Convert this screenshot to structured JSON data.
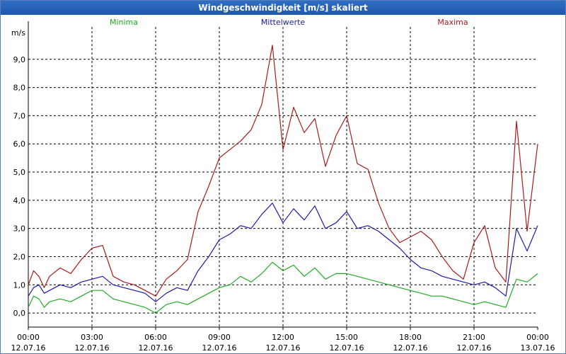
{
  "title": "Windgeschwindigkeit [m/s] skaliert",
  "chart_data": {
    "type": "line",
    "title": "Windgeschwindigkeit [m/s] skaliert",
    "ylabel": "m/s",
    "xlabel": "",
    "ylim": [
      -0.5,
      10.0
    ],
    "xlim": [
      0,
      24
    ],
    "grid": true,
    "legend_position": "top",
    "y_ticks": [
      {
        "value": 0,
        "label": "0,0"
      },
      {
        "value": 1,
        "label": "1,0"
      },
      {
        "value": 2,
        "label": "2,0"
      },
      {
        "value": 3,
        "label": "3,0"
      },
      {
        "value": 4,
        "label": "4,0"
      },
      {
        "value": 5,
        "label": "5,0"
      },
      {
        "value": 6,
        "label": "6,0"
      },
      {
        "value": 7,
        "label": "7,0"
      },
      {
        "value": 8,
        "label": "8,0"
      },
      {
        "value": 9,
        "label": "9,0"
      }
    ],
    "x_ticks": [
      {
        "value": 0,
        "time": "00:00",
        "date": "12.07.16"
      },
      {
        "value": 3,
        "time": "03:00",
        "date": "12.07.16"
      },
      {
        "value": 6,
        "time": "06:00",
        "date": "12.07.16"
      },
      {
        "value": 9,
        "time": "09:00",
        "date": "12.07.16"
      },
      {
        "value": 12,
        "time": "12:00",
        "date": "12.07.16"
      },
      {
        "value": 15,
        "time": "15:00",
        "date": "12.07.16"
      },
      {
        "value": 18,
        "time": "18:00",
        "date": "12.07.16"
      },
      {
        "value": 21,
        "time": "21:00",
        "date": "12.07.16"
      },
      {
        "value": 24,
        "time": "00:00",
        "date": "13.07.16"
      }
    ],
    "series": [
      {
        "name": "Minima",
        "color": "#22aa22",
        "x": [
          0,
          0.25,
          0.5,
          0.75,
          1,
          1.5,
          2,
          2.5,
          3,
          3.5,
          4,
          4.5,
          5,
          5.5,
          6,
          6.5,
          7,
          7.5,
          8,
          8.5,
          9,
          9.5,
          10,
          10.5,
          11,
          11.5,
          12,
          12.5,
          13,
          13.5,
          14,
          14.5,
          15,
          15.5,
          16,
          16.5,
          17,
          17.5,
          18,
          18.5,
          19,
          19.5,
          20,
          20.5,
          21,
          21.5,
          22,
          22.5,
          23,
          23.5,
          24
        ],
        "values": [
          0.2,
          0.6,
          0.5,
          0.2,
          0.4,
          0.5,
          0.4,
          0.6,
          0.8,
          0.8,
          0.5,
          0.4,
          0.3,
          0.2,
          0.0,
          0.3,
          0.4,
          0.3,
          0.5,
          0.7,
          0.9,
          1.0,
          1.3,
          1.1,
          1.4,
          1.8,
          1.5,
          1.7,
          1.3,
          1.6,
          1.2,
          1.4,
          1.4,
          1.3,
          1.2,
          1.1,
          1.0,
          0.9,
          0.8,
          0.7,
          0.6,
          0.6,
          0.5,
          0.4,
          0.3,
          0.4,
          0.3,
          0.2,
          1.2,
          1.1,
          1.4
        ]
      },
      {
        "name": "Mittelwerte",
        "color": "#1a1aaa",
        "x": [
          0,
          0.25,
          0.5,
          0.75,
          1,
          1.5,
          2,
          2.5,
          3,
          3.5,
          4,
          4.5,
          5,
          5.5,
          6,
          6.5,
          7,
          7.5,
          8,
          8.5,
          9,
          9.5,
          10,
          10.5,
          11,
          11.5,
          12,
          12.5,
          13,
          13.5,
          14,
          14.5,
          15,
          15.5,
          16,
          16.5,
          17,
          17.5,
          18,
          18.5,
          19,
          19.5,
          20,
          20.5,
          21,
          21.5,
          22,
          22.5,
          23,
          23.5,
          24
        ],
        "values": [
          0.6,
          0.9,
          1.0,
          0.7,
          0.8,
          1.0,
          0.9,
          1.1,
          1.2,
          1.3,
          1.0,
          0.9,
          0.8,
          0.7,
          0.4,
          0.7,
          0.9,
          0.8,
          1.5,
          2.0,
          2.6,
          2.8,
          3.1,
          3.0,
          3.5,
          3.9,
          3.2,
          3.7,
          3.3,
          3.8,
          3.0,
          3.2,
          3.6,
          3.0,
          3.1,
          2.9,
          2.6,
          2.3,
          1.9,
          1.6,
          1.5,
          1.3,
          1.2,
          1.1,
          1.0,
          1.1,
          0.9,
          0.6,
          3.0,
          2.2,
          3.1
        ]
      },
      {
        "name": "Maxima",
        "color": "#aa1a1a",
        "x": [
          0,
          0.25,
          0.5,
          0.75,
          1,
          1.5,
          2,
          2.5,
          3,
          3.5,
          4,
          4.5,
          5,
          5.5,
          6,
          6.5,
          7,
          7.5,
          8,
          8.5,
          9,
          9.5,
          10,
          10.5,
          11,
          11.5,
          12,
          12.5,
          13,
          13.5,
          14,
          14.5,
          15,
          15.5,
          16,
          16.5,
          17,
          17.5,
          18,
          18.5,
          19,
          19.5,
          20,
          20.5,
          21,
          21.5,
          22,
          22.5,
          23,
          23.5,
          24
        ],
        "values": [
          1.0,
          1.5,
          1.3,
          0.9,
          1.3,
          1.6,
          1.4,
          1.9,
          2.3,
          2.4,
          1.3,
          1.1,
          1.0,
          0.8,
          0.6,
          1.2,
          1.5,
          1.9,
          3.6,
          4.5,
          5.5,
          5.8,
          6.1,
          6.5,
          7.4,
          9.5,
          5.8,
          7.3,
          6.4,
          6.9,
          5.2,
          6.3,
          7.0,
          5.3,
          5.1,
          3.9,
          3.0,
          2.5,
          2.7,
          2.9,
          2.6,
          2.0,
          1.5,
          1.2,
          2.5,
          3.1,
          1.6,
          1.1,
          6.8,
          2.9,
          6.0
        ]
      }
    ]
  }
}
